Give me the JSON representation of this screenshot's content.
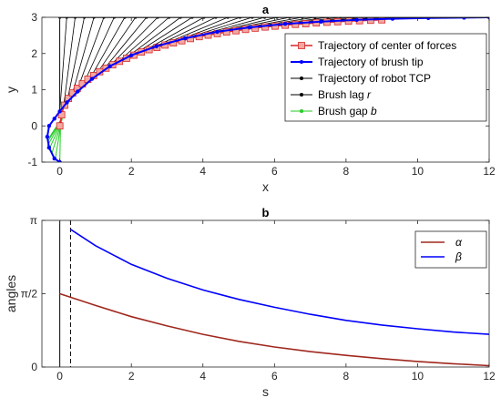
{
  "chart_data": [
    {
      "type": "line",
      "title": "a",
      "xlabel": "x",
      "ylabel": "y",
      "xlim": [
        -0.5,
        12
      ],
      "ylim": [
        -1,
        3
      ],
      "xticks": [
        "0",
        "2",
        "4",
        "6",
        "8",
        "10",
        "12"
      ],
      "yticks": [
        "-1",
        "0",
        "1",
        "2",
        "3"
      ],
      "legend": {
        "position": "top-right",
        "entries": [
          {
            "label": "Trajectory of center of forces",
            "color": "#D62728"
          },
          {
            "label": "Trajectory of brush tip",
            "color": "#0000FF"
          },
          {
            "label": "Trajectory of robot TCP",
            "color": "#000000"
          },
          {
            "label": "Brush lag ",
            "italic": "r",
            "color": "#000000"
          },
          {
            "label": "Brush gap ",
            "italic": "b",
            "color": "#22CC22"
          }
        ]
      },
      "series": [
        {
          "name": "Trajectory of center of forces",
          "color": "#D62728",
          "x": [
            0,
            0.05,
            0.1,
            0.2,
            0.3,
            0.5,
            0.8,
            1.2,
            1.7,
            2.3,
            3,
            3.8,
            4.7,
            5.6,
            6.5,
            7.4,
            8.2,
            9
          ],
          "y": [
            0,
            0.3,
            0.5,
            0.7,
            0.85,
            1.05,
            1.3,
            1.55,
            1.8,
            2.05,
            2.25,
            2.45,
            2.6,
            2.72,
            2.8,
            2.86,
            2.9,
            2.93
          ]
        },
        {
          "name": "Trajectory of brush tip",
          "color": "#0000FF",
          "x": [
            0,
            -0.15,
            -0.3,
            -0.35,
            -0.3,
            -0.15,
            0,
            0.2,
            0.5,
            0.9,
            1.4,
            2,
            2.7,
            3.5,
            4.4,
            5.3,
            6.3,
            7.3,
            8.3,
            9.3,
            10.3,
            11.3,
            12
          ],
          "y": [
            -1,
            -0.9,
            -0.6,
            -0.3,
            0,
            0.2,
            0.4,
            0.65,
            0.95,
            1.3,
            1.65,
            1.95,
            2.2,
            2.42,
            2.6,
            2.72,
            2.82,
            2.88,
            2.93,
            2.96,
            2.98,
            2.99,
            3
          ]
        },
        {
          "name": "Trajectory of robot TCP",
          "color": "#000000",
          "x": [
            0,
            12
          ],
          "y": [
            3,
            3
          ]
        }
      ],
      "lag_segments": {
        "name": "Brush lag",
        "color": "#000000",
        "tcp_y": 3
      },
      "gap_segments": {
        "name": "Brush gap",
        "color": "#22CC22"
      }
    },
    {
      "type": "line",
      "title": "b",
      "xlabel": "s",
      "ylabel": "angles",
      "xlim": [
        -0.5,
        12
      ],
      "ylim": [
        0,
        3.14159
      ],
      "xticks": [
        "0",
        "2",
        "4",
        "6",
        "8",
        "10",
        "12"
      ],
      "yticks": [
        "0",
        "π/2",
        "π"
      ],
      "vlines": [
        {
          "x": 0,
          "style": "solid"
        },
        {
          "x": 0.3,
          "style": "dashed"
        }
      ],
      "legend": {
        "position": "top-right",
        "entries": [
          {
            "label": "α",
            "color": "#A0281E"
          },
          {
            "label": "β",
            "color": "#0000FF"
          }
        ]
      },
      "series": [
        {
          "name": "α",
          "color": "#A0281E",
          "x": [
            0,
            1,
            2,
            3,
            4,
            5,
            6,
            7,
            8,
            9,
            10,
            11,
            12
          ],
          "y": [
            1.571,
            1.32,
            1.08,
            0.88,
            0.7,
            0.55,
            0.43,
            0.33,
            0.25,
            0.18,
            0.12,
            0.07,
            0.03
          ]
        },
        {
          "name": "β",
          "color": "#0000FF",
          "x": [
            0.3,
            1,
            2,
            3,
            4,
            5,
            6,
            7,
            8,
            9,
            10,
            11,
            12
          ],
          "y": [
            2.95,
            2.6,
            2.2,
            1.9,
            1.65,
            1.45,
            1.28,
            1.13,
            1.0,
            0.9,
            0.82,
            0.75,
            0.7
          ]
        }
      ]
    }
  ]
}
